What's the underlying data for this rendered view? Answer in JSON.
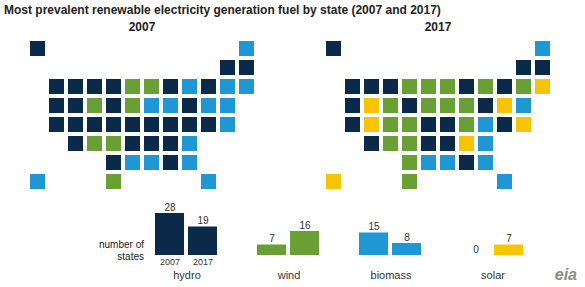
{
  "title": "Most prevalent renewable electricity generation fuel by state (2007 and 2017)",
  "maps": [
    {
      "title": "2007",
      "states": {
        "AK": "hydro",
        "WA": "hydro",
        "OR": "hydro",
        "CA": "hydro",
        "NV": "hydro",
        "ID": "hydro",
        "MT": "hydro",
        "UT": "hydro",
        "AZ": "hydro",
        "CO": "hydro",
        "ND": "hydro",
        "SD": "hydro",
        "NE": "hydro",
        "OK": "hydro",
        "MO": "hydro",
        "AR": "hydro",
        "WI": "hydro",
        "TN": "hydro",
        "KY": "hydro",
        "AL": "hydro",
        "NC": "hydro",
        "VA": "hydro",
        "WV": "hydro",
        "PA": "hydro",
        "NY": "hydro",
        "VT": "hydro",
        "NH": "hydro",
        "MD": "hydro",
        "WY": "wind",
        "MN": "wind",
        "IA": "wind",
        "IL": "wind",
        "KS": "wind",
        "TX": "wind",
        "NM": "wind",
        "HI": "biomass",
        "LA": "biomass",
        "MS": "biomass",
        "FL": "biomass",
        "GA": "biomass",
        "SC": "biomass",
        "MI": "biomass",
        "OH": "biomass",
        "IN": "biomass",
        "ME": "biomass",
        "DE": "biomass",
        "NJ": "biomass",
        "MA": "biomass",
        "CT": "biomass",
        "RI": "biomass"
      }
    },
    {
      "title": "2017",
      "states": {
        "AK": "hydro",
        "WA": "hydro",
        "OR": "hydro",
        "CA": "hydro",
        "ID": "hydro",
        "MT": "hydro",
        "AZ": "hydro",
        "SD": "hydro",
        "WI": "hydro",
        "MO": "hydro",
        "AR": "hydro",
        "TN": "hydro",
        "KY": "hydro",
        "AL": "hydro",
        "PA": "hydro",
        "NY": "hydro",
        "VT": "hydro",
        "NH": "hydro",
        "MD": "hydro",
        "TX": "wind",
        "OK": "wind",
        "KS": "wind",
        "NE": "wind",
        "IA": "wind",
        "MN": "wind",
        "ND": "wind",
        "WY": "wind",
        "CO": "wind",
        "NM": "wind",
        "IL": "wind",
        "IN": "wind",
        "OH": "wind",
        "MI": "wind",
        "WV": "wind",
        "RI": "wind",
        "LA": "biomass",
        "MS": "biomass",
        "FL": "biomass",
        "GA": "biomass",
        "SC": "biomass",
        "ME": "biomass",
        "CT": "biomass",
        "VA": "biomass",
        "NV": "solar",
        "UT": "solar",
        "NC": "solar",
        "HI": "solar",
        "NJ": "solar",
        "MA": "solar",
        "DE": "solar"
      }
    }
  ],
  "chart_data": {
    "type": "bar",
    "y_label": "number of states",
    "categories": [
      "hydro",
      "wind",
      "biomass",
      "solar"
    ],
    "colors": [
      "#0b2a4a",
      "#69a033",
      "#1f97d4",
      "#f7c500"
    ],
    "series": [
      {
        "name": "2007",
        "values": [
          28,
          7,
          15,
          0
        ]
      },
      {
        "name": "2017",
        "values": [
          19,
          16,
          8,
          7
        ]
      }
    ],
    "ylim": [
      0,
      28
    ],
    "data_labels": true,
    "tick_labels": "x",
    "grid": false
  },
  "logo": "eia"
}
